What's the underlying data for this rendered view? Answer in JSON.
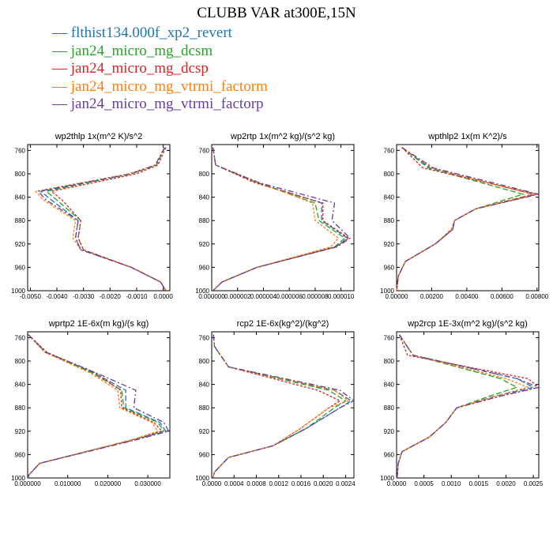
{
  "title": "CLUBB VAR at300E,15N",
  "legend": [
    {
      "label": "flthist134.000f_xp2_revert",
      "color": "#1f77b4"
    },
    {
      "label": "jan24_micro_mg_dcsm",
      "color": "#2ca02c"
    },
    {
      "label": "jan24_micro_mg_dcsp",
      "color": "#d62728"
    },
    {
      "label": "jan24_micro_mg_vtrmi_factorm",
      "color": "#ff7f0e"
    },
    {
      "label": "jan24_micro_mg_vtrmi_factorp",
      "color": "#6a3d9a"
    }
  ],
  "chart_data": [
    {
      "type": "line",
      "title": "wp2thlp  1x(m^2 K)/s^2",
      "ylim": [
        1000,
        750
      ],
      "yticks": [
        760,
        800,
        840,
        880,
        920,
        960,
        1000
      ],
      "xlim": [
        -0.0051,
        0.00025
      ],
      "xticks": [
        -0.005,
        -0.004,
        -0.003,
        -0.002,
        -0.001,
        0.0
      ],
      "xticklabels": [
        "-0.0050",
        "-0.0040",
        "-0.0030",
        "-0.0020",
        "-0.0010",
        "0.0000"
      ],
      "y": [
        755,
        785,
        800,
        830,
        845,
        880,
        910,
        930,
        960,
        985,
        1000
      ],
      "series": [
        {
          "values": [
            5e-05,
            -0.00025,
            -0.0012,
            -0.0046,
            -0.0042,
            -0.0032,
            -0.0033,
            -0.0031,
            -0.0012,
            -0.0001,
            0.0001
          ]
        },
        {
          "values": [
            5e-05,
            -0.00025,
            -0.0012,
            -0.0044,
            -0.004,
            -0.0031,
            -0.0032,
            -0.003,
            -0.0012,
            -0.0001,
            0.0001
          ]
        },
        {
          "values": [
            0.0001,
            -0.0002,
            -0.001,
            -0.0042,
            -0.0038,
            -0.0031,
            -0.0032,
            -0.003,
            -0.0012,
            -0.0001,
            0.0001
          ]
        },
        {
          "values": [
            5e-05,
            -0.0003,
            -0.0013,
            -0.0048,
            -0.0045,
            -0.0033,
            -0.0034,
            -0.0031,
            -0.0012,
            -0.0001,
            0.0001
          ]
        },
        {
          "values": [
            5e-05,
            -0.0003,
            -0.0012,
            -0.0047,
            -0.0044,
            -0.0032,
            -0.0033,
            -0.0031,
            -0.0012,
            -0.0001,
            0.0001
          ]
        }
      ]
    },
    {
      "type": "line",
      "title": "wp2rtp  1x(m^2 kg)/(s^2 kg)",
      "ylim": [
        1000,
        750
      ],
      "yticks": [
        760,
        800,
        840,
        880,
        920,
        960,
        1000
      ],
      "xlim": [
        0.0,
        1.1e-05
      ],
      "xticks": [
        0.0,
        2e-06,
        4e-06,
        6e-06,
        8e-06,
        1e-05
      ],
      "xticklabels": [
        "0.000000",
        "0.000002",
        "0.000004",
        "0.000006",
        "0.000008",
        "0.000010"
      ],
      "y": [
        755,
        785,
        815,
        850,
        880,
        910,
        925,
        960,
        985,
        1000
      ],
      "series": [
        {
          "values": [
            1e-07,
            3e-07,
            3.5e-06,
            8.5e-06,
            8.5e-06,
            1.05e-05,
            9.6e-06,
            3.5e-06,
            8e-07,
            1e-07
          ]
        },
        {
          "values": [
            1e-07,
            3e-07,
            3.5e-06,
            8e-06,
            8.3e-06,
            1.03e-05,
            9.5e-06,
            3.5e-06,
            8e-07,
            1e-07
          ]
        },
        {
          "values": [
            1e-07,
            3e-07,
            3.3e-06,
            8.6e-06,
            8.6e-06,
            1.06e-05,
            9.6e-06,
            3.5e-06,
            8e-07,
            1e-07
          ]
        },
        {
          "values": [
            1e-07,
            3e-07,
            3.7e-06,
            7.8e-06,
            8e-06,
            9.8e-06,
            9.2e-06,
            3.5e-06,
            8e-07,
            1e-07
          ]
        },
        {
          "values": [
            1e-07,
            3e-07,
            3.6e-06,
            9.5e-06,
            9.3e-06,
            1.07e-05,
            9.7e-06,
            3.5e-06,
            8e-07,
            1e-07
          ]
        }
      ]
    },
    {
      "type": "line",
      "title": "wpthlp2  1x(m K^2)/s",
      "ylim": [
        1000,
        750
      ],
      "yticks": [
        760,
        800,
        840,
        880,
        920,
        960,
        1000
      ],
      "xlim": [
        0.0,
        0.0081
      ],
      "xticks": [
        0.0,
        0.002,
        0.004,
        0.006,
        0.008
      ],
      "xticklabels": [
        "0.00000",
        "0.00200",
        "0.00400",
        "0.00600",
        "0.00800"
      ],
      "y": [
        755,
        790,
        835,
        860,
        880,
        895,
        920,
        950,
        975,
        1000
      ],
      "series": [
        {
          "values": [
            0.0003,
            0.0019,
            0.0078,
            0.0045,
            0.0033,
            0.0032,
            0.0022,
            0.0005,
            0.0001,
            0.0
          ],
          "_note": null
        },
        {
          "values": [
            0.0003,
            0.0018,
            0.0072,
            0.0045,
            0.0033,
            0.0032,
            0.0022,
            0.0005,
            0.0001,
            0.0
          ]
        },
        {
          "values": [
            0.0003,
            0.0015,
            0.008,
            0.0045,
            0.0033,
            0.0032,
            0.0022,
            0.0005,
            0.0001,
            0.0
          ]
        },
        {
          "values": [
            0.0003,
            0.002,
            0.0077,
            0.0045,
            0.0033,
            0.0031,
            0.0022,
            0.0005,
            0.0001,
            0.0
          ]
        },
        {
          "values": [
            0.0003,
            0.0021,
            0.0081,
            0.0045,
            0.0033,
            0.0032,
            0.0022,
            0.0005,
            0.0001,
            0.0
          ]
        }
      ]
    },
    {
      "type": "line",
      "title": "wprtp2  1E-6x(m kg)/(s kg)",
      "ylim": [
        1000,
        750
      ],
      "yticks": [
        760,
        800,
        840,
        880,
        920,
        960,
        1000
      ],
      "xlim": [
        0.0,
        0.0355
      ],
      "xticks": [
        0.0,
        0.01,
        0.02,
        0.03
      ],
      "xticklabels": [
        "0.000000",
        "0.010000",
        "0.020000",
        "0.030000"
      ],
      "y": [
        755,
        785,
        820,
        850,
        880,
        905,
        920,
        935,
        975,
        995,
        1000
      ],
      "series": [
        {
          "values": [
            0.0002,
            0.0045,
            0.0165,
            0.0245,
            0.0245,
            0.033,
            0.0345,
            0.0265,
            0.003,
            0.0003,
            0.0001
          ]
        },
        {
          "values": [
            0.0002,
            0.0045,
            0.016,
            0.0235,
            0.024,
            0.0325,
            0.034,
            0.026,
            0.003,
            0.0003,
            0.0001
          ]
        },
        {
          "values": [
            0.0002,
            0.0048,
            0.0168,
            0.0232,
            0.0235,
            0.0315,
            0.0335,
            0.026,
            0.003,
            0.0003,
            0.0001
          ]
        },
        {
          "values": [
            0.0002,
            0.0042,
            0.0155,
            0.0225,
            0.023,
            0.031,
            0.0325,
            0.026,
            0.003,
            0.0003,
            0.0001
          ]
        },
        {
          "values": [
            0.0002,
            0.0045,
            0.017,
            0.027,
            0.0265,
            0.034,
            0.0352,
            0.027,
            0.003,
            0.0003,
            0.0001
          ]
        }
      ]
    },
    {
      "type": "line",
      "title": "rcp2  1E-6x(kg^2)/(kg^2)",
      "ylim": [
        1000,
        750
      ],
      "yticks": [
        760,
        800,
        840,
        880,
        920,
        960,
        1000
      ],
      "xlim": [
        0.0,
        0.00255
      ],
      "xticks": [
        0.0,
        0.0004,
        0.0008,
        0.0012,
        0.0016,
        0.002,
        0.0024
      ],
      "xticklabels": [
        "0.0000",
        "0.0004",
        "0.0008",
        "0.0012",
        "0.0016",
        "0.0020",
        "0.0024"
      ],
      "y": [
        755,
        775,
        810,
        850,
        868,
        880,
        915,
        945,
        965,
        990,
        1000
      ],
      "series": [
        {
          "values": [
            3e-05,
            5e-05,
            0.0003,
            0.0022,
            0.0025,
            0.0023,
            0.0017,
            0.0011,
            0.0003,
            5e-05,
            2e-05
          ]
        },
        {
          "values": [
            3e-05,
            5e-05,
            0.0003,
            0.0021,
            0.0024,
            0.0022,
            0.0017,
            0.0011,
            0.0003,
            5e-05,
            2e-05
          ]
        },
        {
          "values": [
            3e-05,
            5e-05,
            0.0003,
            0.0019,
            0.0023,
            0.0021,
            0.0016,
            0.0011,
            0.0003,
            5e-05,
            2e-05
          ]
        },
        {
          "values": [
            3e-05,
            5e-05,
            0.0003,
            0.0022,
            0.00245,
            0.0021,
            0.0016,
            0.0011,
            0.0003,
            5e-05,
            2e-05
          ]
        },
        {
          "values": [
            3e-05,
            5e-05,
            0.0003,
            0.0023,
            0.00255,
            0.0023,
            0.0017,
            0.0011,
            0.0003,
            5e-05,
            2e-05
          ]
        }
      ]
    },
    {
      "type": "line",
      "title": "wp2rcp  1E-3x(m^2 kg)/(s^2 kg)",
      "ylim": [
        1000,
        750
      ],
      "yticks": [
        760,
        800,
        840,
        880,
        920,
        960,
        1000
      ],
      "xlim": [
        0.0,
        0.0026
      ],
      "xticks": [
        0.0,
        0.0005,
        0.001,
        0.0015,
        0.002,
        0.0025
      ],
      "xticklabels": [
        "0.0000",
        "0.0005",
        "0.0010",
        "0.0015",
        "0.0020",
        "0.0025"
      ],
      "y": [
        755,
        790,
        830,
        845,
        860,
        880,
        905,
        930,
        955,
        975,
        1000
      ],
      "series": [
        {
          "values": [
            5e-05,
            0.0003,
            0.0022,
            0.0025,
            0.0018,
            0.0011,
            0.0009,
            0.0006,
            0.0001,
            3e-05,
            1e-05
          ]
        },
        {
          "values": [
            5e-05,
            0.0003,
            0.0019,
            0.0022,
            0.0017,
            0.0011,
            0.0009,
            0.0006,
            0.0001,
            3e-05,
            1e-05
          ]
        },
        {
          "values": [
            5e-05,
            0.0002,
            0.0024,
            0.0026,
            0.0019,
            0.0011,
            0.0009,
            0.0006,
            0.0001,
            3e-05,
            1e-05
          ]
        },
        {
          "values": [
            5e-05,
            0.0003,
            0.002,
            0.0024,
            0.0018,
            0.0011,
            0.0009,
            0.0006,
            0.0001,
            3e-05,
            1e-05
          ]
        },
        {
          "values": [
            5e-05,
            0.0003,
            0.0022,
            0.0026,
            0.0019,
            0.0011,
            0.0009,
            0.0006,
            0.0001,
            3e-05,
            1e-05
          ]
        }
      ]
    }
  ]
}
